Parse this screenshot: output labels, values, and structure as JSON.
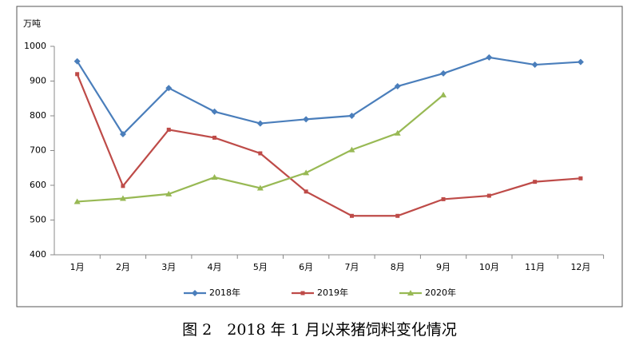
{
  "chart_data": {
    "type": "line",
    "title": "图 2　2018 年 1 月以来猪饲料变化情况",
    "y_label": "万吨",
    "categories": [
      "1月",
      "2月",
      "3月",
      "4月",
      "5月",
      "6月",
      "7月",
      "8月",
      "9月",
      "10月",
      "11月",
      "12月"
    ],
    "series": [
      {
        "name": "2018年",
        "color": "#4a7ebb",
        "marker": "diamond",
        "values": [
          957,
          747,
          880,
          812,
          778,
          790,
          800,
          885,
          922,
          968,
          947,
          955
        ]
      },
      {
        "name": "2019年",
        "color": "#be4b48",
        "marker": "square",
        "values": [
          920,
          598,
          760,
          737,
          692,
          582,
          512,
          512,
          560,
          570,
          610,
          620
        ]
      },
      {
        "name": "2020年",
        "color": "#98b954",
        "marker": "triangle",
        "values": [
          553,
          562,
          575,
          623,
          592,
          636,
          702,
          750,
          860,
          null,
          null,
          null
        ]
      }
    ],
    "ylim": [
      400,
      1000
    ],
    "yticks": [
      400,
      500,
      600,
      700,
      800,
      900,
      1000
    ],
    "grid": false,
    "legend": "bottom"
  }
}
